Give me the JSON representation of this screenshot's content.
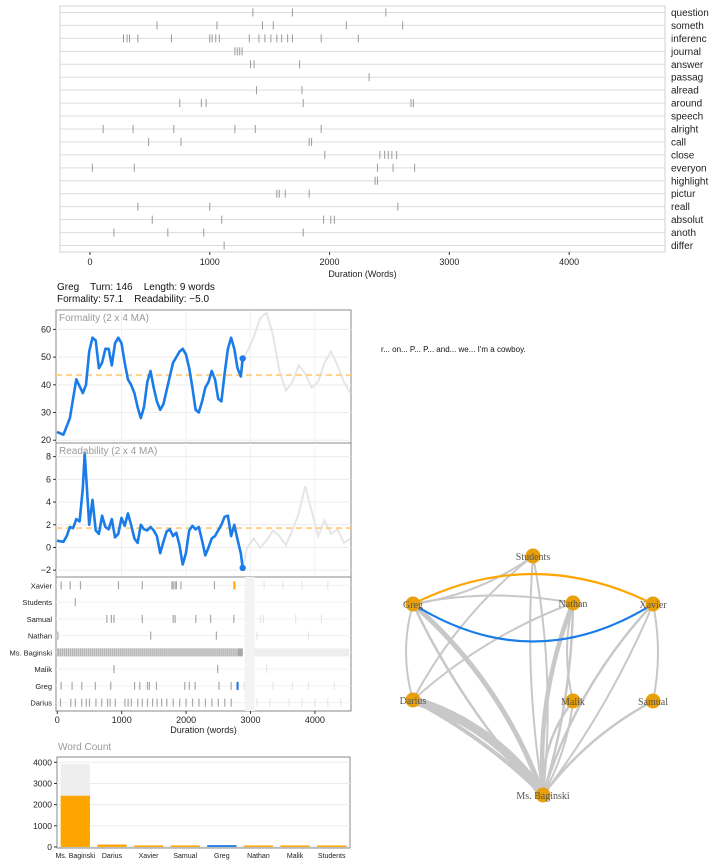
{
  "dispersion": {
    "xlabel": "Duration (Words)",
    "xticks": [
      0,
      1000,
      2000,
      3000,
      4000
    ],
    "xlim": [
      -250,
      4800
    ],
    "terms": [
      {
        "name": "question",
        "pos": [
          1360,
          1690,
          2470
        ]
      },
      {
        "name": "someth",
        "pos": [
          560,
          1060,
          1440,
          1530,
          2140,
          2610
        ]
      },
      {
        "name": "inferenc",
        "pos": [
          280,
          310,
          330,
          400,
          680,
          1000,
          1020,
          1050,
          1080,
          1330,
          1410,
          1460,
          1510,
          1560,
          1600,
          1650,
          1690,
          1930,
          2240
        ]
      },
      {
        "name": "journal",
        "pos": [
          1210,
          1230,
          1250,
          1270
        ]
      },
      {
        "name": "answer",
        "pos": [
          1340,
          1370,
          1750
        ]
      },
      {
        "name": "passag",
        "pos": [
          2330
        ]
      },
      {
        "name": "alread",
        "pos": [
          1390,
          1770
        ]
      },
      {
        "name": "around",
        "pos": [
          750,
          930,
          970,
          1780,
          2680,
          2700
        ]
      },
      {
        "name": "speech",
        "pos": []
      },
      {
        "name": "alright",
        "pos": [
          110,
          360,
          700,
          1210,
          1380,
          1930
        ]
      },
      {
        "name": "call",
        "pos": [
          490,
          760,
          1830,
          1850
        ]
      },
      {
        "name": "close",
        "pos": [
          1960,
          2420,
          2460,
          2490,
          2520,
          2560
        ]
      },
      {
        "name": "everyon",
        "pos": [
          20,
          370,
          2400,
          2530,
          2710
        ]
      },
      {
        "name": "highlight",
        "pos": [
          2380,
          2400
        ]
      },
      {
        "name": "pictur",
        "pos": [
          1560,
          1580,
          1630,
          1830
        ]
      },
      {
        "name": "reall",
        "pos": [
          400,
          1000,
          2570
        ]
      },
      {
        "name": "absolut",
        "pos": [
          520,
          1100,
          1950,
          2010,
          2040
        ]
      },
      {
        "name": "anoth",
        "pos": [
          200,
          650,
          950,
          1780
        ]
      },
      {
        "name": "differ",
        "pos": [
          1120
        ]
      }
    ]
  },
  "turn_info": {
    "speaker": "Greg",
    "turn": "Turn: 146",
    "length": "Length: 9 words",
    "formality": "Formality: 57.1",
    "readability": "Readability: −5.0"
  },
  "formality": {
    "title": "Formality (2 x 4 MA)",
    "yticks": [
      20,
      30,
      40,
      50,
      60
    ],
    "ylim": [
      19,
      67
    ],
    "mean": 43.5,
    "current_end": 2880,
    "current_value": 49.5,
    "x": [
      0,
      100,
      200,
      300,
      400,
      450,
      500,
      550,
      600,
      650,
      700,
      750,
      800,
      850,
      900,
      950,
      1000,
      1050,
      1100,
      1150,
      1200,
      1250,
      1300,
      1350,
      1400,
      1450,
      1500,
      1550,
      1600,
      1650,
      1700,
      1750,
      1800,
      1850,
      1900,
      1950,
      2000,
      2050,
      2100,
      2150,
      2200,
      2250,
      2300,
      2350,
      2400,
      2450,
      2500,
      2550,
      2600,
      2650,
      2700,
      2750,
      2800,
      2850,
      2880,
      2950,
      3050,
      3150,
      3250,
      3350,
      3450,
      3550,
      3650,
      3750,
      3850,
      3950,
      4050,
      4150,
      4250,
      4350,
      4450,
      4550
    ],
    "y": [
      23,
      22,
      28,
      42,
      37,
      40,
      52,
      57,
      56,
      46,
      48,
      53,
      53,
      47,
      55,
      57,
      55,
      48,
      42,
      40,
      37,
      32,
      28,
      32,
      41,
      45,
      39,
      34,
      31,
      33,
      38,
      43,
      48,
      50,
      52,
      53,
      51,
      46,
      39,
      31,
      30,
      34,
      39,
      41,
      45,
      42,
      35,
      34,
      44,
      53,
      57,
      53,
      46,
      43,
      49.5,
      52,
      57,
      64,
      66,
      58,
      45,
      38,
      41,
      47,
      44,
      39,
      41,
      48,
      52,
      47,
      41,
      37
    ]
  },
  "readability": {
    "title": "Readability (2 x 4 MA)",
    "yticks": [
      -2,
      0,
      2,
      4,
      6,
      8
    ],
    "ylim": [
      -2.6,
      9.2
    ],
    "mean": 1.7,
    "current_end": 2880,
    "current_value": -1.8,
    "x": [
      0,
      100,
      150,
      200,
      250,
      300,
      350,
      400,
      430,
      460,
      500,
      550,
      600,
      650,
      700,
      750,
      800,
      850,
      900,
      950,
      1000,
      1050,
      1100,
      1150,
      1200,
      1250,
      1300,
      1350,
      1400,
      1450,
      1500,
      1550,
      1600,
      1650,
      1700,
      1750,
      1800,
      1850,
      1900,
      1950,
      2000,
      2050,
      2100,
      2150,
      2200,
      2250,
      2300,
      2350,
      2400,
      2450,
      2500,
      2550,
      2600,
      2650,
      2700,
      2750,
      2800,
      2850,
      2880,
      2950,
      3050,
      3150,
      3250,
      3350,
      3450,
      3550,
      3650,
      3750,
      3850,
      3950,
      4050,
      4150,
      4250,
      4350,
      4450,
      4550
    ],
    "y": [
      0.6,
      0.5,
      1.0,
      1.8,
      1.7,
      2.5,
      2.3,
      5.2,
      8.3,
      5.5,
      2.0,
      4.2,
      1.5,
      1.2,
      2.8,
      1.8,
      1.6,
      2.5,
      0.9,
      1.2,
      2.6,
      1.9,
      3.0,
      2.0,
      0.8,
      0.4,
      2.0,
      1.6,
      1.5,
      1.8,
      1.5,
      1.0,
      -0.5,
      0.5,
      1.4,
      1.6,
      1.0,
      1.3,
      0.2,
      -1.5,
      -0.5,
      1.5,
      1.9,
      1.6,
      1.8,
      0.6,
      -0.7,
      0.0,
      0.8,
      1.0,
      1.5,
      2.0,
      2.7,
      2.8,
      1.0,
      2.0,
      0.7,
      -0.5,
      -1.8,
      0.0,
      0.8,
      0.0,
      0.6,
      1.5,
      1.0,
      0.2,
      1.5,
      3.0,
      5.4,
      3.2,
      1.0,
      2.4,
      1.2,
      1.6,
      0.4,
      0.8
    ]
  },
  "turns": {
    "xlabel": "Duration (words)",
    "xticks": [
      0,
      1000,
      2000,
      3000,
      4000
    ],
    "xlim": [
      -20,
      4560
    ],
    "current_end": 2880,
    "speakers": [
      "Xavier",
      "Students",
      "Samual",
      "Nathan",
      "Ms. Baginski",
      "Malik",
      "Greg",
      "Darius"
    ],
    "current_speaker": "Greg",
    "highlight_speaker": "Xavier",
    "positions": {
      "Xavier": [
        60,
        200,
        360,
        950,
        1320,
        1780,
        1800,
        1830,
        1850,
        1920,
        2440,
        2750
      ],
      "Students": [
        280
      ],
      "Samual": [
        770,
        840,
        880,
        1320,
        1800,
        1830,
        2150,
        2380,
        2740
      ],
      "Nathan": [
        10,
        1450,
        2470
      ],
      "Ms. Baginski": [],
      "Malik": [
        880,
        2490
      ],
      "Greg": [
        60,
        230,
        380,
        590,
        830,
        1200,
        1280,
        1400,
        1430,
        1540,
        1980,
        2050,
        2140,
        2510,
        2700,
        2790,
        2800
      ],
      "Darius": [
        50,
        210,
        280,
        380,
        450,
        500,
        600,
        690,
        780,
        820,
        900,
        1050,
        1100,
        1150,
        1250,
        1320,
        1400,
        1480,
        1550,
        1620,
        1700,
        1800,
        1900,
        2000,
        2100,
        2200,
        2300,
        2400,
        2500,
        2600,
        2700
      ]
    },
    "future_positions": {
      "Xavier": [
        2930,
        3050,
        3210,
        3500,
        3800,
        4200
      ],
      "Students": [],
      "Samual": [
        3150,
        3200,
        3700,
        4100
      ],
      "Nathan": [
        3100,
        3900
      ],
      "Ms. Baginski": [],
      "Malik": [
        3250
      ],
      "Greg": [
        2900,
        3000,
        3350,
        3650,
        3900,
        4300
      ],
      "Darius": [
        2950,
        3100,
        3300,
        3600,
        3800,
        4000,
        4200,
        4400
      ]
    }
  },
  "word_count": {
    "title": "Word Count",
    "categories": [
      "Ms. Baginski",
      "Darius",
      "Xavier",
      "Samual",
      "Greg",
      "Nathan",
      "Malik",
      "Students"
    ],
    "values": [
      2420,
      110,
      55,
      50,
      85,
      8,
      5,
      3
    ],
    "totals": [
      3920,
      130,
      70,
      60,
      90,
      10,
      6,
      4
    ],
    "yticks": [
      0,
      1000,
      2000,
      3000,
      4000
    ],
    "ylim": [
      -50,
      4250
    ]
  },
  "utterance": "r... on... P... P... and... we... I'm a cowboy.",
  "network": {
    "nodes": [
      {
        "name": "Students"
      },
      {
        "name": "Greg"
      },
      {
        "name": "Nathan"
      },
      {
        "name": "Xavier"
      },
      {
        "name": "Darius"
      },
      {
        "name": "Malik"
      },
      {
        "name": "Samual"
      },
      {
        "name": "Ms. Baginski"
      }
    ]
  },
  "colors": {
    "blue": "#1a7ce8",
    "orange": "#ffa500",
    "grey": "#c8c8c8",
    "node": "#e8a00a"
  }
}
